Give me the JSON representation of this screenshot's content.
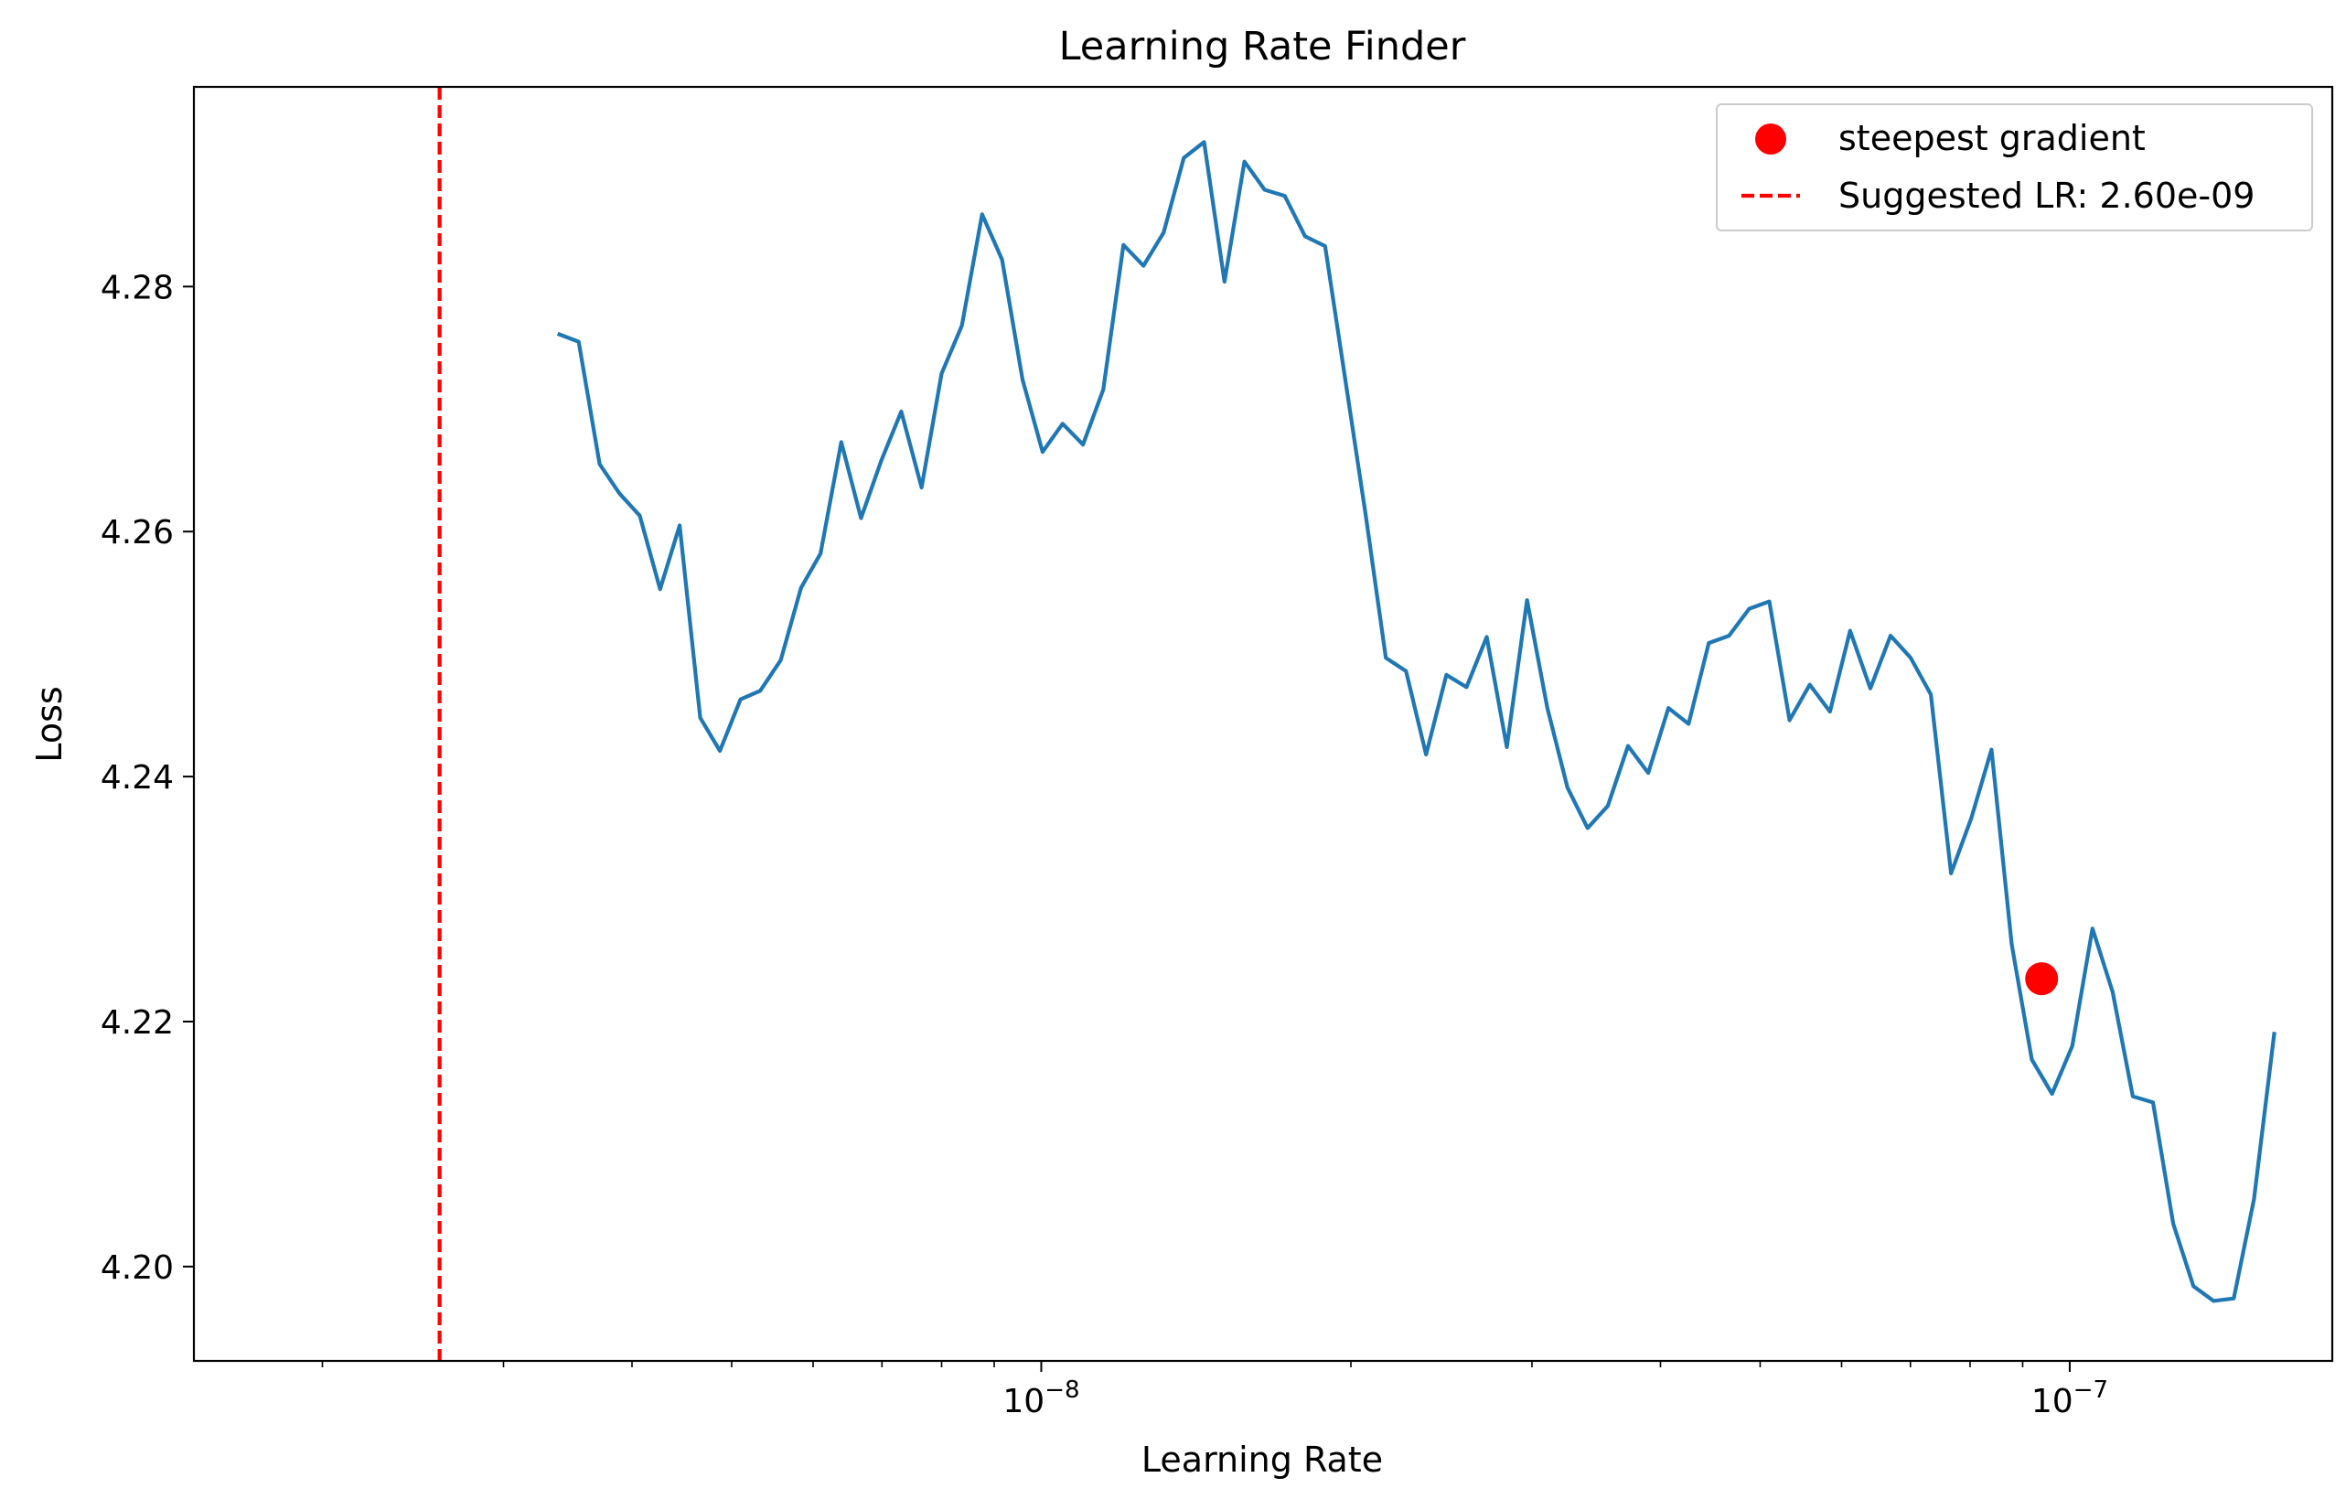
{
  "chart_data": {
    "type": "line",
    "title": "Learning Rate Finder",
    "xlabel": "Learning Rate",
    "ylabel": "Loss",
    "xscale": "log",
    "xlim": [
      1.5e-09,
      1.8e-07
    ],
    "ylim": [
      4.1923,
      4.2963
    ],
    "grid": false,
    "legend_position": "top-right",
    "x_ticks": [
      {
        "value": 1e-08,
        "base": "10",
        "exponent": "−8"
      },
      {
        "value": 1e-07,
        "base": "10",
        "exponent": "−7"
      }
    ],
    "y_ticks": [
      {
        "value": 4.2,
        "label": "4.20"
      },
      {
        "value": 4.22,
        "label": "4.22"
      },
      {
        "value": 4.24,
        "label": "4.24"
      },
      {
        "value": 4.26,
        "label": "4.26"
      },
      {
        "value": 4.28,
        "label": "4.28"
      }
    ],
    "series": [
      {
        "color": "#1f77b4",
        "x": [
          3.4e-09,
          3.55e-09,
          3.72e-09,
          3.89e-09,
          4.07e-09,
          4.26e-09,
          4.45e-09,
          4.66e-09,
          4.87e-09,
          5.1e-09,
          5.33e-09,
          5.58e-09,
          5.84e-09,
          6.1e-09,
          6.39e-09,
          6.68e-09,
          6.99e-09,
          7.31e-09,
          7.65e-09,
          8e-09,
          8.37e-09,
          8.76e-09,
          9.16e-09,
          9.59e-09,
          1.003e-08,
          1.049e-08,
          1.098e-08,
          1.149e-08,
          1.202e-08,
          1.257e-08,
          1.315e-08,
          1.376e-08,
          1.44e-08,
          1.507e-08,
          1.576e-08,
          1.649e-08,
          1.725e-08,
          1.805e-08,
          1.888e-08,
          1.976e-08,
          2.067e-08,
          2.163e-08,
          2.263e-08,
          2.367e-08,
          2.477e-08,
          2.591e-08,
          2.711e-08,
          2.836e-08,
          2.967e-08,
          3.105e-08,
          3.248e-08,
          3.398e-08,
          3.555e-08,
          3.72e-08,
          3.892e-08,
          4.072e-08,
          4.26e-08,
          4.457e-08,
          4.663e-08,
          4.879e-08,
          5.104e-08,
          5.34e-08,
          5.587e-08,
          5.846e-08,
          6.116e-08,
          6.399e-08,
          6.695e-08,
          7.004e-08,
          7.328e-08,
          7.667e-08,
          8.022e-08,
          8.393e-08,
          8.781e-08,
          9.187e-08,
          9.612e-08,
          1.0056e-07,
          1.0521e-07,
          1.1008e-07,
          1.1517e-07,
          1.205e-07,
          1.2607e-07,
          1.319e-07,
          1.38e-07,
          1.4438e-07,
          1.5106e-07,
          1.5804e-07
        ],
        "values": [
          4.2761,
          4.2755,
          4.2655,
          4.2631,
          4.2613,
          4.2553,
          4.2605,
          4.2448,
          4.2421,
          4.2463,
          4.247,
          4.2495,
          4.2554,
          4.2582,
          4.2673,
          4.2611,
          4.2658,
          4.2698,
          4.2636,
          4.2729,
          4.2768,
          4.2859,
          4.2822,
          4.2724,
          4.2665,
          4.2688,
          4.2671,
          4.2716,
          4.2834,
          4.2817,
          4.2844,
          4.2905,
          4.2918,
          4.2804,
          4.2902,
          4.2879,
          4.2874,
          4.2841,
          4.2833,
          4.2723,
          4.2614,
          4.2497,
          4.2486,
          4.2418,
          4.2483,
          4.2473,
          4.2514,
          4.2424,
          4.2544,
          4.2456,
          4.2391,
          4.2358,
          4.2376,
          4.2425,
          4.2403,
          4.2456,
          4.2443,
          4.2509,
          4.2515,
          4.2537,
          4.2543,
          4.2446,
          4.2475,
          4.2453,
          4.2519,
          4.2472,
          4.2515,
          4.2497,
          4.2467,
          4.2321,
          4.2366,
          4.2422,
          4.2263,
          4.2169,
          4.2141,
          4.218,
          4.2276,
          4.2224,
          4.2139,
          4.2134,
          4.2035,
          4.1984,
          4.1972,
          4.1974,
          4.2055,
          4.219
        ]
      }
    ],
    "marker": {
      "name": "steepest gradient",
      "x": 9.39e-08,
      "y": 4.2235,
      "color": "#ff0000"
    },
    "vline": {
      "name": "Suggested LR: 2.60e-09",
      "x": 2.6e-09,
      "color": "#ff0000",
      "style": "dashed"
    },
    "legend": [
      {
        "label": "steepest gradient",
        "kind": "marker"
      },
      {
        "label": "Suggested LR: 2.60e-09",
        "kind": "dashed-line"
      }
    ]
  }
}
